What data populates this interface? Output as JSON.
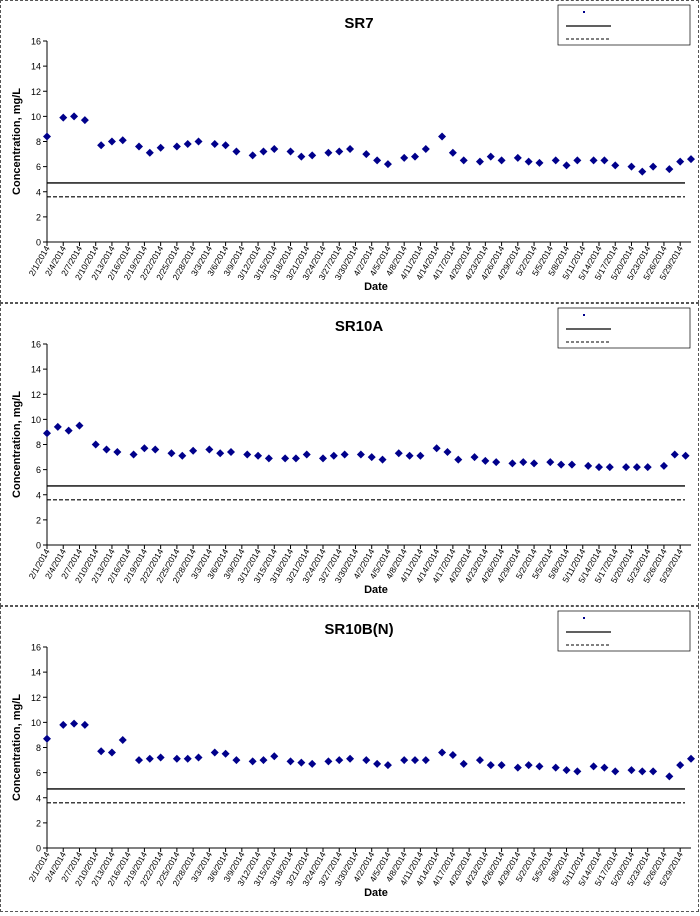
{
  "chart_data": [
    {
      "type": "scatter",
      "title": "SR7",
      "xlabel": "Date",
      "ylabel": "Concentration, mg/L",
      "ylim": [
        0,
        16
      ],
      "yticks": [
        0,
        2,
        4,
        6,
        8,
        10,
        12,
        14,
        16
      ],
      "x_tick_labels": [
        "2/1/2014",
        "2/4/2014",
        "2/7/2014",
        "2/10/2014",
        "2/13/2014",
        "2/16/2014",
        "2/19/2014",
        "2/22/2014",
        "2/25/2014",
        "2/28/2014",
        "3/3/2014",
        "3/6/2014",
        "3/9/2014",
        "3/12/2014",
        "3/15/2014",
        "3/18/2014",
        "3/21/2014",
        "3/24/2014",
        "3/27/2014",
        "3/30/2014",
        "4/2/2014",
        "4/5/2014",
        "4/8/2014",
        "4/11/2014",
        "4/14/2014",
        "4/17/2014",
        "4/20/2014",
        "4/23/2014",
        "4/26/2014",
        "4/29/2014",
        "5/2/2014",
        "5/5/2014",
        "5/8/2014",
        "5/11/2014",
        "5/14/2014",
        "5/17/2014",
        "5/20/2014",
        "5/23/2014",
        "5/26/2014",
        "5/29/2014"
      ],
      "legend_position": "top-right",
      "series": [
        {
          "style": "points",
          "color": "#00008B",
          "x": [
            "2/1/2014",
            "2/4/2014",
            "2/6/2014",
            "2/8/2014",
            "2/11/2014",
            "2/13/2014",
            "2/15/2014",
            "2/18/2014",
            "2/20/2014",
            "2/22/2014",
            "2/25/2014",
            "2/27/2014",
            "3/1/2014",
            "3/4/2014",
            "3/6/2014",
            "3/8/2014",
            "3/11/2014",
            "3/13/2014",
            "3/15/2014",
            "3/18/2014",
            "3/20/2014",
            "3/22/2014",
            "3/25/2014",
            "3/27/2014",
            "3/29/2014",
            "4/1/2014",
            "4/3/2014",
            "4/5/2014",
            "4/8/2014",
            "4/10/2014",
            "4/12/2014",
            "4/15/2014",
            "4/17/2014",
            "4/19/2014",
            "4/22/2014",
            "4/24/2014",
            "4/26/2014",
            "4/29/2014",
            "5/1/2014",
            "5/3/2014",
            "5/6/2014",
            "5/8/2014",
            "5/10/2014",
            "5/13/2014",
            "5/15/2014",
            "5/17/2014",
            "5/20/2014",
            "5/22/2014",
            "5/24/2014",
            "5/27/2014",
            "5/29/2014",
            "5/31/2014"
          ],
          "y": [
            8.4,
            9.9,
            10.0,
            9.7,
            7.7,
            8.0,
            8.1,
            7.6,
            7.1,
            7.5,
            7.6,
            7.8,
            8.0,
            7.8,
            7.7,
            7.2,
            6.9,
            7.2,
            7.4,
            7.2,
            6.8,
            6.9,
            7.1,
            7.2,
            7.4,
            7.0,
            6.5,
            6.2,
            6.7,
            6.8,
            7.4,
            8.4,
            7.1,
            6.5,
            6.4,
            6.8,
            6.5,
            6.7,
            6.4,
            6.3,
            6.5,
            6.1,
            6.5,
            6.5,
            6.5,
            6.1,
            6.0,
            5.6,
            6.0,
            5.8,
            6.4,
            6.6
          ]
        },
        {
          "style": "solid",
          "y_const": 4.7
        },
        {
          "style": "dashed",
          "y_const": 3.6
        }
      ]
    },
    {
      "type": "scatter",
      "title": "SR10A",
      "xlabel": "Date",
      "ylabel": "Concentration, mg/L",
      "ylim": [
        0,
        16
      ],
      "yticks": [
        0,
        2,
        4,
        6,
        8,
        10,
        12,
        14,
        16
      ],
      "x_tick_labels": [
        "2/1/2014",
        "2/4/2014",
        "2/7/2014",
        "2/10/2014",
        "2/13/2014",
        "2/16/2014",
        "2/19/2014",
        "2/22/2014",
        "2/25/2014",
        "2/28/2014",
        "3/3/2014",
        "3/6/2014",
        "3/9/2014",
        "3/12/2014",
        "3/15/2014",
        "3/18/2014",
        "3/21/2014",
        "3/24/2014",
        "3/27/2014",
        "3/30/2014",
        "4/2/2014",
        "4/5/2014",
        "4/8/2014",
        "4/11/2014",
        "4/14/2014",
        "4/17/2014",
        "4/20/2014",
        "4/23/2014",
        "4/26/2014",
        "4/29/2014",
        "5/2/2014",
        "5/5/2014",
        "5/8/2014",
        "5/11/2014",
        "5/14/2014",
        "5/17/2014",
        "5/20/2014",
        "5/23/2014",
        "5/26/2014",
        "5/29/2014"
      ],
      "legend_position": "top-right",
      "series": [
        {
          "style": "points",
          "color": "#00008B",
          "x": [
            "2/1/2014",
            "2/3/2014",
            "2/5/2014",
            "2/7/2014",
            "2/10/2014",
            "2/12/2014",
            "2/14/2014",
            "2/17/2014",
            "2/19/2014",
            "2/21/2014",
            "2/24/2014",
            "2/26/2014",
            "2/28/2014",
            "3/3/2014",
            "3/5/2014",
            "3/7/2014",
            "3/10/2014",
            "3/12/2014",
            "3/14/2014",
            "3/17/2014",
            "3/19/2014",
            "3/21/2014",
            "3/24/2014",
            "3/26/2014",
            "3/28/2014",
            "3/31/2014",
            "4/2/2014",
            "4/4/2014",
            "4/7/2014",
            "4/9/2014",
            "4/11/2014",
            "4/14/2014",
            "4/16/2014",
            "4/18/2014",
            "4/21/2014",
            "4/23/2014",
            "4/25/2014",
            "4/28/2014",
            "4/30/2014",
            "5/2/2014",
            "5/5/2014",
            "5/7/2014",
            "5/9/2014",
            "5/12/2014",
            "5/14/2014",
            "5/16/2014",
            "5/19/2014",
            "5/21/2014",
            "5/23/2014",
            "5/26/2014",
            "5/28/2014",
            "5/30/2014"
          ],
          "y": [
            8.9,
            9.4,
            9.1,
            9.5,
            8.0,
            7.6,
            7.4,
            7.2,
            7.7,
            7.6,
            7.3,
            7.1,
            7.5,
            7.6,
            7.3,
            7.4,
            7.2,
            7.1,
            6.9,
            6.9,
            6.9,
            7.2,
            6.9,
            7.1,
            7.2,
            7.2,
            7.0,
            6.8,
            7.3,
            7.1,
            7.1,
            7.7,
            7.4,
            6.8,
            7.0,
            6.7,
            6.6,
            6.5,
            6.6,
            6.5,
            6.6,
            6.4,
            6.4,
            6.3,
            6.2,
            6.2,
            6.2,
            6.2,
            6.2,
            6.3,
            7.2,
            7.1
          ]
        },
        {
          "style": "solid",
          "y_const": 4.7
        },
        {
          "style": "dashed",
          "y_const": 3.6
        }
      ]
    },
    {
      "type": "scatter",
      "title": "SR10B(N)",
      "xlabel": "Date",
      "ylabel": "Concentration, mg/L",
      "ylim": [
        0,
        16
      ],
      "yticks": [
        0,
        2,
        4,
        6,
        8,
        10,
        12,
        14,
        16
      ],
      "x_tick_labels": [
        "2/1/2014",
        "2/4/2014",
        "2/7/2014",
        "2/10/2014",
        "2/13/2014",
        "2/16/2014",
        "2/19/2014",
        "2/22/2014",
        "2/25/2014",
        "2/28/2014",
        "3/3/2014",
        "3/6/2014",
        "3/9/2014",
        "3/12/2014",
        "3/15/2014",
        "3/18/2014",
        "3/21/2014",
        "3/24/2014",
        "3/27/2014",
        "3/30/2014",
        "4/2/2014",
        "4/5/2014",
        "4/8/2014",
        "4/11/2014",
        "4/14/2014",
        "4/17/2014",
        "4/20/2014",
        "4/23/2014",
        "4/26/2014",
        "4/29/2014",
        "5/2/2014",
        "5/5/2014",
        "5/8/2014",
        "5/11/2014",
        "5/14/2014",
        "5/17/2014",
        "5/20/2014",
        "5/23/2014",
        "5/26/2014",
        "5/29/2014"
      ],
      "legend_position": "top-right",
      "series": [
        {
          "style": "points",
          "color": "#00008B",
          "x": [
            "2/1/2014",
            "2/4/2014",
            "2/6/2014",
            "2/8/2014",
            "2/11/2014",
            "2/13/2014",
            "2/15/2014",
            "2/18/2014",
            "2/20/2014",
            "2/22/2014",
            "2/25/2014",
            "2/27/2014",
            "3/1/2014",
            "3/4/2014",
            "3/6/2014",
            "3/8/2014",
            "3/11/2014",
            "3/13/2014",
            "3/15/2014",
            "3/18/2014",
            "3/20/2014",
            "3/22/2014",
            "3/25/2014",
            "3/27/2014",
            "3/29/2014",
            "4/1/2014",
            "4/3/2014",
            "4/5/2014",
            "4/8/2014",
            "4/10/2014",
            "4/12/2014",
            "4/15/2014",
            "4/17/2014",
            "4/19/2014",
            "4/22/2014",
            "4/24/2014",
            "4/26/2014",
            "4/29/2014",
            "5/1/2014",
            "5/3/2014",
            "5/6/2014",
            "5/8/2014",
            "5/10/2014",
            "5/13/2014",
            "5/15/2014",
            "5/17/2014",
            "5/20/2014",
            "5/22/2014",
            "5/24/2014",
            "5/27/2014",
            "5/29/2014",
            "5/31/2014"
          ],
          "y": [
            8.7,
            9.8,
            9.9,
            9.8,
            7.7,
            7.6,
            8.6,
            7.0,
            7.1,
            7.2,
            7.1,
            7.1,
            7.2,
            7.6,
            7.5,
            7.0,
            6.9,
            7.0,
            7.3,
            6.9,
            6.8,
            6.7,
            6.9,
            7.0,
            7.1,
            7.0,
            6.7,
            6.6,
            7.0,
            7.0,
            7.0,
            7.6,
            7.4,
            6.7,
            7.0,
            6.6,
            6.6,
            6.4,
            6.6,
            6.5,
            6.4,
            6.2,
            6.1,
            6.5,
            6.4,
            6.1,
            6.2,
            6.1,
            6.1,
            5.7,
            6.6,
            7.1
          ]
        },
        {
          "style": "solid",
          "y_const": 4.7
        },
        {
          "style": "dashed",
          "y_const": 3.6
        }
      ]
    }
  ]
}
